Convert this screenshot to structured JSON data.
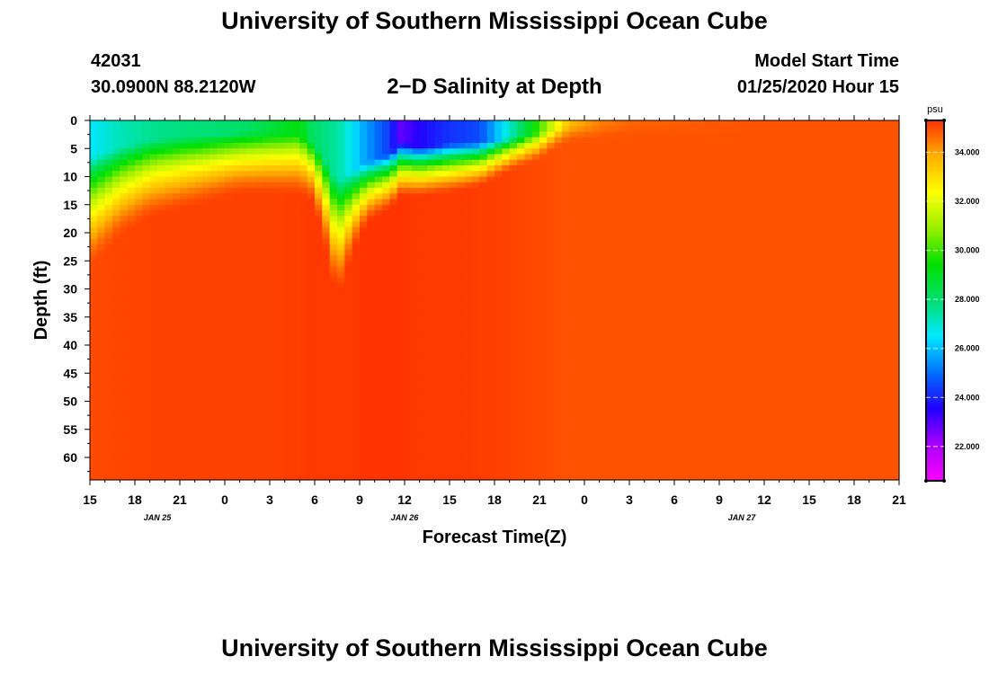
{
  "header": {
    "main_title": "University of Southern Mississippi Ocean Cube",
    "station_id": "42031",
    "station_coords": "30.0900N 88.2120W",
    "plot_title": "2−D Salinity at Depth",
    "model_start_label": "Model Start Time",
    "model_start_value": "01/25/2020 Hour 15"
  },
  "footer": {
    "title": "University of Southern Mississippi Ocean Cube"
  },
  "chart_data": {
    "type": "heatmap",
    "title": "2−D Salinity at Depth",
    "xlabel": "Forecast Time(Z)",
    "ylabel": "Depth (ft)",
    "x_ticks": [
      "15",
      "18",
      "21",
      "0",
      "3",
      "6",
      "9",
      "12",
      "15",
      "18",
      "21",
      "0",
      "3",
      "6",
      "9",
      "12",
      "15",
      "18",
      "21"
    ],
    "x_hours_range": [
      0,
      54
    ],
    "date_labels": [
      {
        "text": "JAN 25",
        "hour": 4.5
      },
      {
        "text": "JAN 26",
        "hour": 21
      },
      {
        "text": "JAN 27",
        "hour": 43.5
      }
    ],
    "y_ticks": [
      0,
      5,
      10,
      15,
      20,
      25,
      30,
      35,
      40,
      45,
      50,
      55,
      60
    ],
    "ylim": [
      0,
      64
    ],
    "colorbar": {
      "unit": "psu",
      "labels": [
        "34.000",
        "32.000",
        "30.000",
        "28.000",
        "26.000",
        "24.000",
        "22.000"
      ],
      "range": [
        20.6,
        35.3
      ],
      "colors": [
        "#ff00ff",
        "#aa00ff",
        "#2200ff",
        "#0070ff",
        "#00e8ff",
        "#00e070",
        "#00e000",
        "#99ee00",
        "#ffff00",
        "#ffb000",
        "#ff3000"
      ]
    },
    "salinity_profile": {
      "hours": [
        0,
        2,
        4,
        6,
        8,
        10,
        12,
        14,
        14.8,
        15.5,
        16.5,
        17.5,
        18.5,
        20,
        20.8,
        22,
        24,
        26,
        28,
        30,
        31,
        32,
        34,
        36,
        40,
        44,
        48,
        54
      ],
      "surface_psu": [
        26.5,
        27.2,
        27.6,
        27.8,
        27.9,
        28.0,
        28.6,
        29.3,
        28.2,
        27.8,
        27.5,
        26.5,
        25.5,
        24.3,
        22.8,
        23.6,
        24.2,
        24.5,
        27.0,
        30.0,
        32.0,
        33.6,
        34.4,
        34.7,
        34.8,
        34.9,
        34.9,
        34.9
      ],
      "mix_depth_ft": [
        6.5,
        4.8,
        3.5,
        3.0,
        2.6,
        2.2,
        2.2,
        2.5,
        3.8,
        6.0,
        11.0,
        9.0,
        7.5,
        6.0,
        3.8,
        4.8,
        4.2,
        4.0,
        3.2,
        2.2,
        1.4,
        1.0,
        1.0,
        1.0,
        1.0,
        1.0,
        1.0,
        1.0
      ],
      "transition_ft": [
        20,
        16,
        14,
        13,
        12,
        11,
        11,
        11,
        11,
        14,
        22,
        15,
        11,
        10,
        10,
        9,
        9,
        8,
        6,
        5,
        4,
        3,
        2.5,
        2,
        2,
        2,
        2,
        2
      ],
      "deep_psu": [
        35.0,
        35.05,
        35.1,
        35.1,
        35.1,
        35.1,
        35.1,
        35.15,
        35.2,
        35.2,
        35.2,
        35.2,
        35.25,
        35.25,
        35.25,
        35.2,
        35.2,
        35.15,
        35.1,
        35.0,
        34.95,
        34.9,
        34.9,
        34.9,
        34.9,
        34.9,
        34.9,
        34.9
      ]
    }
  }
}
